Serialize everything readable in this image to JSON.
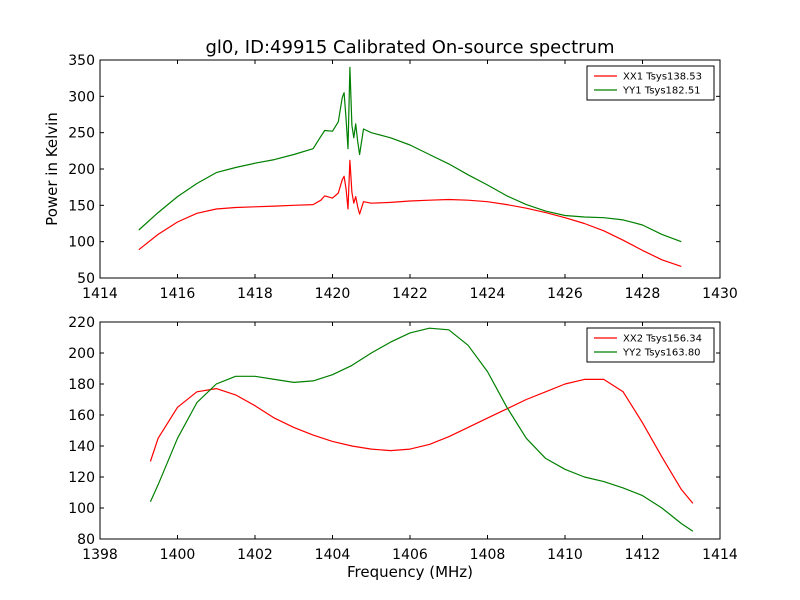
{
  "title": "gl0, ID:49915 Calibrated On-source spectrum",
  "chart_data": [
    {
      "type": "line",
      "title": "gl0, ID:49915 Calibrated On-source spectrum",
      "xlabel": "",
      "ylabel": "Power in Kelvin",
      "xlim": [
        1414,
        1430
      ],
      "ylim": [
        50,
        350
      ],
      "xticks": [
        1414,
        1416,
        1418,
        1420,
        1422,
        1424,
        1426,
        1428,
        1430
      ],
      "yticks": [
        50,
        100,
        150,
        200,
        250,
        300,
        350
      ],
      "grid": false,
      "legend_position": "top-right",
      "series": [
        {
          "name": "XX1 Tsys138.53",
          "color": "#ff0000",
          "x": [
            1415.0,
            1415.5,
            1416.0,
            1416.5,
            1417.0,
            1417.5,
            1418.0,
            1418.5,
            1419.0,
            1419.5,
            1419.7,
            1419.8,
            1420.0,
            1420.15,
            1420.25,
            1420.3,
            1420.35,
            1420.4,
            1420.45,
            1420.5,
            1420.55,
            1420.6,
            1420.65,
            1420.7,
            1420.8,
            1421.0,
            1421.5,
            1422.0,
            1422.5,
            1423.0,
            1423.5,
            1424.0,
            1424.5,
            1425.0,
            1425.5,
            1426.0,
            1426.5,
            1427.0,
            1427.5,
            1428.0,
            1428.5,
            1429.0
          ],
          "y": [
            89,
            110,
            127,
            139,
            145,
            147,
            148,
            149,
            150,
            151,
            157,
            163,
            160,
            167,
            185,
            190,
            172,
            145,
            212,
            168,
            153,
            162,
            148,
            138,
            155,
            153,
            154,
            156,
            157,
            158,
            157,
            155,
            151,
            146,
            140,
            133,
            125,
            115,
            102,
            88,
            75,
            66
          ]
        },
        {
          "name": "YY1 Tsys182.51",
          "color": "#008000",
          "x": [
            1415.0,
            1415.5,
            1416.0,
            1416.5,
            1417.0,
            1417.5,
            1418.0,
            1418.5,
            1419.0,
            1419.5,
            1419.7,
            1419.8,
            1420.0,
            1420.15,
            1420.25,
            1420.3,
            1420.35,
            1420.4,
            1420.45,
            1420.5,
            1420.55,
            1420.6,
            1420.65,
            1420.7,
            1420.8,
            1421.0,
            1421.5,
            1422.0,
            1422.5,
            1423.0,
            1423.5,
            1424.0,
            1424.5,
            1425.0,
            1425.5,
            1426.0,
            1426.5,
            1427.0,
            1427.5,
            1428.0,
            1428.5,
            1429.0
          ],
          "y": [
            116,
            140,
            162,
            180,
            195,
            202,
            208,
            213,
            220,
            228,
            245,
            253,
            252,
            265,
            298,
            305,
            268,
            228,
            340,
            260,
            243,
            262,
            238,
            220,
            255,
            250,
            243,
            233,
            220,
            207,
            192,
            178,
            163,
            151,
            142,
            136,
            134,
            133,
            130,
            123,
            110,
            100
          ]
        }
      ]
    },
    {
      "type": "line",
      "title": "",
      "xlabel": "Frequency (MHz)",
      "ylabel": "",
      "xlim": [
        1398,
        1414
      ],
      "ylim": [
        80,
        220
      ],
      "xticks": [
        1398,
        1400,
        1402,
        1404,
        1406,
        1408,
        1410,
        1412,
        1414
      ],
      "yticks": [
        80,
        100,
        120,
        140,
        160,
        180,
        200,
        220
      ],
      "grid": false,
      "legend_position": "top-right",
      "series": [
        {
          "name": "XX2 Tsys156.34",
          "color": "#ff0000",
          "x": [
            1399.3,
            1399.5,
            1400.0,
            1400.5,
            1401.0,
            1401.5,
            1402.0,
            1402.5,
            1403.0,
            1403.5,
            1404.0,
            1404.5,
            1405.0,
            1405.5,
            1406.0,
            1406.5,
            1407.0,
            1407.5,
            1408.0,
            1408.5,
            1409.0,
            1409.5,
            1410.0,
            1410.5,
            1411.0,
            1411.5,
            1412.0,
            1412.5,
            1413.0,
            1413.3
          ],
          "y": [
            130,
            145,
            165,
            175,
            177,
            173,
            166,
            158,
            152,
            147,
            143,
            140,
            138,
            137,
            138,
            141,
            146,
            152,
            158,
            164,
            170,
            175,
            180,
            183,
            183,
            175,
            155,
            133,
            112,
            103
          ]
        },
        {
          "name": "YY2 Tsys163.80",
          "color": "#008000",
          "x": [
            1399.3,
            1399.5,
            1400.0,
            1400.5,
            1401.0,
            1401.5,
            1402.0,
            1402.5,
            1403.0,
            1403.5,
            1404.0,
            1404.5,
            1405.0,
            1405.5,
            1406.0,
            1406.5,
            1407.0,
            1407.5,
            1408.0,
            1408.5,
            1409.0,
            1409.5,
            1410.0,
            1410.5,
            1411.0,
            1411.5,
            1412.0,
            1412.5,
            1413.0,
            1413.3
          ],
          "y": [
            104,
            115,
            145,
            168,
            180,
            185,
            185,
            183,
            181,
            182,
            186,
            192,
            200,
            207,
            213,
            216,
            215,
            205,
            188,
            165,
            145,
            132,
            125,
            120,
            117,
            113,
            108,
            100,
            90,
            85
          ]
        }
      ]
    }
  ]
}
